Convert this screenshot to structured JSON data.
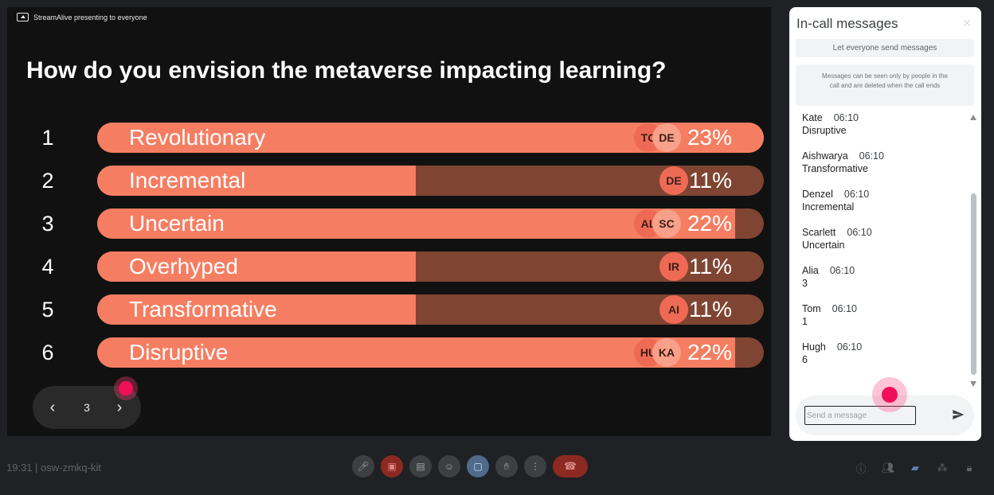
{
  "presenter": {
    "text": "StreamAlive presenting to everyone"
  },
  "poll": {
    "question": "How do you envision the metaverse impacting learning?",
    "options": [
      {
        "num": "1",
        "label": "Revolutionary",
        "percent": 23,
        "percent_text": "23%",
        "avatars": [
          "TC",
          "DE"
        ]
      },
      {
        "num": "2",
        "label": "Incremental",
        "percent": 11,
        "percent_text": "11%",
        "avatars": [
          "DE"
        ]
      },
      {
        "num": "3",
        "label": "Uncertain",
        "percent": 22,
        "percent_text": "22%",
        "avatars": [
          "AL",
          "SC"
        ]
      },
      {
        "num": "4",
        "label": "Overhyped",
        "percent": 11,
        "percent_text": "11%",
        "avatars": [
          "IR"
        ]
      },
      {
        "num": "5",
        "label": "Transformative",
        "percent": 11,
        "percent_text": "11%",
        "avatars": [
          "AI"
        ]
      },
      {
        "num": "6",
        "label": "Disruptive",
        "percent": 22,
        "percent_text": "22%",
        "avatars": [
          "HU",
          "KA"
        ]
      }
    ]
  },
  "pager": {
    "prev_icon": "chevron-left-icon",
    "page": "3",
    "next_icon": "chevron-right-icon"
  },
  "chat": {
    "title": "In-call messages",
    "close_icon": "close-icon",
    "toggle_label": "Let everyone send messages",
    "info": "Messages can be seen only by people in the call and are deleted when the call ends",
    "messages": [
      {
        "name": "Kate",
        "time": "06:10",
        "text": "Disruptive"
      },
      {
        "name": "Aishwarya",
        "time": "06:10",
        "text": "Transformative"
      },
      {
        "name": "Denzel",
        "time": "06:10",
        "text": "Incremental"
      },
      {
        "name": "Scarlett",
        "time": "06:10",
        "text": "Uncertain"
      },
      {
        "name": "Alia",
        "time": "06:10",
        "text": "3"
      },
      {
        "name": "Tom",
        "time": "06:10",
        "text": "1"
      },
      {
        "name": "Hugh",
        "time": "06:10",
        "text": "6"
      }
    ],
    "input_placeholder": "Send a message",
    "input_value": "",
    "send_icon": "send-icon"
  },
  "bottom": {
    "meeting_info": "19:31 | osw-zmkq-kit",
    "controls": [
      "mic-icon",
      "camera-off-icon",
      "captions-icon",
      "emoji-icon",
      "present-icon",
      "raise-hand-icon",
      "more-options-icon",
      "end-call-icon"
    ],
    "right_icons": [
      "info-icon",
      "people-icon",
      "chat-icon",
      "activities-icon",
      "host-controls-icon"
    ]
  },
  "colors": {
    "bar_fill": "#f57e62",
    "bar_track": "#7f4532",
    "avatar": "#ef6a55",
    "avatar_front": "#f8a089",
    "cursor": "#f0105a",
    "active_icon": "#5b7fb6"
  }
}
